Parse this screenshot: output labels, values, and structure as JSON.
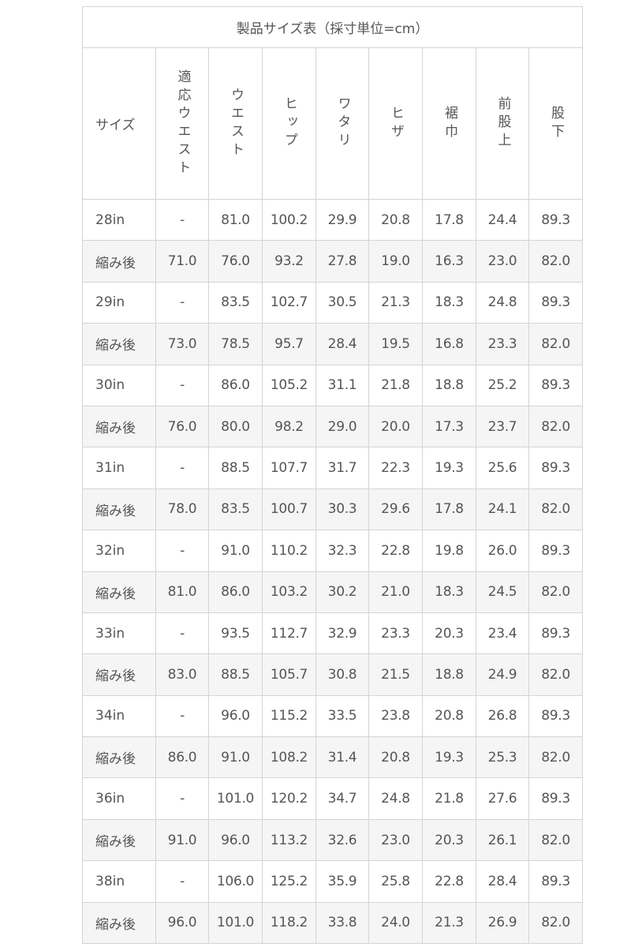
{
  "table": {
    "title": "製品サイズ表（採寸単位=cm）",
    "headers": [
      "サイズ",
      "適応ウエスト",
      "ウエスト",
      "ヒップ",
      "ワタリ",
      "ヒザ",
      "裾巾",
      "前股上",
      "股下"
    ],
    "rows": [
      [
        "28in",
        "-",
        "81.0",
        "100.2",
        "29.9",
        "20.8",
        "17.8",
        "24.4",
        "89.3"
      ],
      [
        "縮み後",
        "71.0",
        "76.0",
        "93.2",
        "27.8",
        "19.0",
        "16.3",
        "23.0",
        "82.0"
      ],
      [
        "29in",
        "-",
        "83.5",
        "102.7",
        "30.5",
        "21.3",
        "18.3",
        "24.8",
        "89.3"
      ],
      [
        "縮み後",
        "73.0",
        "78.5",
        "95.7",
        "28.4",
        "19.5",
        "16.8",
        "23.3",
        "82.0"
      ],
      [
        "30in",
        "-",
        "86.0",
        "105.2",
        "31.1",
        "21.8",
        "18.8",
        "25.2",
        "89.3"
      ],
      [
        "縮み後",
        "76.0",
        "80.0",
        "98.2",
        "29.0",
        "20.0",
        "17.3",
        "23.7",
        "82.0"
      ],
      [
        "31in",
        "-",
        "88.5",
        "107.7",
        "31.7",
        "22.3",
        "19.3",
        "25.6",
        "89.3"
      ],
      [
        "縮み後",
        "78.0",
        "83.5",
        "100.7",
        "30.3",
        "29.6",
        "17.8",
        "24.1",
        "82.0"
      ],
      [
        "32in",
        "-",
        "91.0",
        "110.2",
        "32.3",
        "22.8",
        "19.8",
        "26.0",
        "89.3"
      ],
      [
        "縮み後",
        "81.0",
        "86.0",
        "103.2",
        "30.2",
        "21.0",
        "18.3",
        "24.5",
        "82.0"
      ],
      [
        "33in",
        "-",
        "93.5",
        "112.7",
        "32.9",
        "23.3",
        "20.3",
        "23.4",
        "89.3"
      ],
      [
        "縮み後",
        "83.0",
        "88.5",
        "105.7",
        "30.8",
        "21.5",
        "18.8",
        "24.9",
        "82.0"
      ],
      [
        "34in",
        "-",
        "96.0",
        "115.2",
        "33.5",
        "23.8",
        "20.8",
        "26.8",
        "89.3"
      ],
      [
        "縮み後",
        "86.0",
        "91.0",
        "108.2",
        "31.4",
        "20.8",
        "19.3",
        "25.3",
        "82.0"
      ],
      [
        "36in",
        "-",
        "101.0",
        "120.2",
        "34.7",
        "24.8",
        "21.8",
        "27.6",
        "89.3"
      ],
      [
        "縮み後",
        "91.0",
        "96.0",
        "113.2",
        "32.6",
        "23.0",
        "20.3",
        "26.1",
        "82.0"
      ],
      [
        "38in",
        "-",
        "106.0",
        "125.2",
        "35.9",
        "25.8",
        "22.8",
        "28.4",
        "89.3"
      ],
      [
        "縮み後",
        "96.0",
        "101.0",
        "118.2",
        "33.8",
        "24.0",
        "21.3",
        "26.9",
        "82.0"
      ]
    ]
  },
  "colors": {
    "text": "#555555",
    "border": "#d4d4d4",
    "alt_row": "#f5f5f5"
  }
}
